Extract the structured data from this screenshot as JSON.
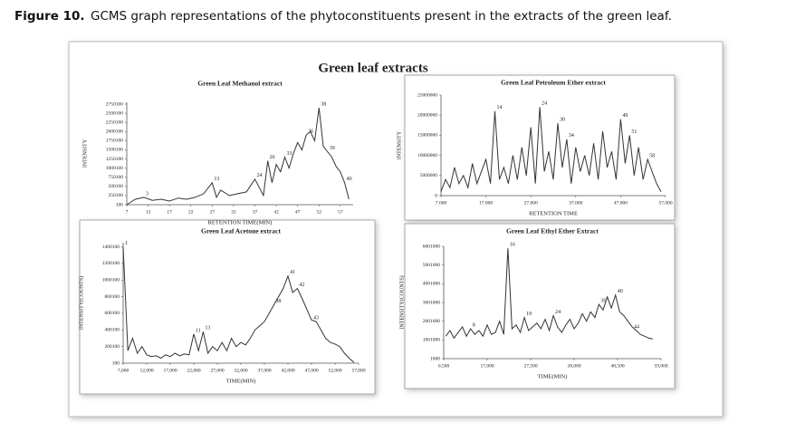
{
  "caption_label": "Figure 10.",
  "caption": "GCMS graph representations of the phytoconstituents present in the extracts of the green leaf.",
  "figure_title": "Green leaf extracts",
  "chart_data": [
    {
      "type": "line",
      "title": "Green Leaf Methanol extract",
      "xlabel": "RETENTION TIME(MIN)",
      "ylabel": "INTENSITY",
      "color": "#333333",
      "x": [
        7,
        9,
        11,
        13,
        15,
        17,
        19,
        21,
        23,
        25,
        27,
        28,
        29,
        31,
        33,
        35,
        37,
        39,
        40,
        41,
        42,
        43,
        44,
        45,
        46,
        47,
        48,
        49,
        50,
        51,
        52,
        53,
        54,
        55,
        56,
        57,
        58,
        59
      ],
      "values": [
        100,
        150000,
        200000,
        120000,
        150000,
        100000,
        180000,
        150000,
        200000,
        300000,
        600000,
        200000,
        400000,
        250000,
        300000,
        350000,
        700000,
        250000,
        1200000,
        600000,
        1100000,
        900000,
        1300000,
        1000000,
        1400000,
        1700000,
        1500000,
        1900000,
        2000000,
        1750000,
        2650000,
        1600000,
        1450000,
        1300000,
        1050000,
        900000,
        600000,
        150000
      ],
      "xlim": [
        7,
        60
      ],
      "ylim": [
        100,
        2800000
      ],
      "xticks": [
        7,
        12,
        17,
        22,
        27,
        32,
        37,
        42,
        47,
        52,
        57
      ],
      "yticks": [
        100,
        250100,
        500100,
        750100,
        1000100,
        1250100,
        1500100,
        1750100,
        2000100,
        2250100,
        2500100,
        2750100
      ],
      "annotations": [
        {
          "label": "3",
          "x": 11,
          "y": 200000
        },
        {
          "label": "13",
          "x": 27,
          "y": 600000
        },
        {
          "label": "24",
          "x": 37,
          "y": 700000
        },
        {
          "label": "26",
          "x": 40,
          "y": 1200000
        },
        {
          "label": "33",
          "x": 44,
          "y": 1300000
        },
        {
          "label": "36",
          "x": 49,
          "y": 1900000
        },
        {
          "label": "38",
          "x": 52,
          "y": 2650000
        },
        {
          "label": "39",
          "x": 54,
          "y": 1450000
        },
        {
          "label": "40",
          "x": 58,
          "y": 600000
        }
      ]
    },
    {
      "type": "line",
      "title": "Green Leaf Petroleum Ether extract",
      "xlabel": "RETENTION TIME",
      "ylabel": "INTENSITY",
      "color": "#333333",
      "x": [
        7000,
        8000,
        9000,
        10000,
        11000,
        12000,
        13000,
        14000,
        15000,
        16000,
        17000,
        18000,
        19000,
        20000,
        21000,
        22000,
        23000,
        24000,
        25000,
        26000,
        27000,
        28000,
        29000,
        30000,
        31000,
        32000,
        33000,
        34000,
        35000,
        36000,
        37000,
        38000,
        39000,
        40000,
        41000,
        42000,
        43000,
        44000,
        45000,
        46000,
        47000,
        48000,
        49000,
        50000,
        51000,
        52000,
        53000,
        54000,
        55000,
        56000
      ],
      "values": [
        1000000,
        4000000,
        2000000,
        7000000,
        3000000,
        5000000,
        2000000,
        8000000,
        3000000,
        6000000,
        9000000,
        3000000,
        21000000,
        4000000,
        7000000,
        3000000,
        10000000,
        4000000,
        12000000,
        5000000,
        17000000,
        3000000,
        22000000,
        6000000,
        11000000,
        4000000,
        18000000,
        7000000,
        14000000,
        3000000,
        12000000,
        6000000,
        10000000,
        5000000,
        13000000,
        4000000,
        16000000,
        7000000,
        11000000,
        4000000,
        19000000,
        8000000,
        15000000,
        5000000,
        12000000,
        4000000,
        9000000,
        6000000,
        3000000,
        1000000
      ],
      "xlim": [
        7000,
        57000
      ],
      "ylim": [
        0,
        25000000
      ],
      "xticks": [
        {
          "value": 7000,
          "label": "7.000"
        },
        {
          "value": 17000,
          "label": "17.000"
        },
        {
          "value": 27000,
          "label": "27.000"
        },
        {
          "value": 37000,
          "label": "37.000"
        },
        {
          "value": 47000,
          "label": "47.000"
        },
        {
          "value": 57000,
          "label": "57.000"
        }
      ],
      "yticks": [
        0,
        5000000,
        10000000,
        15000000,
        20000000,
        25000000
      ],
      "annotations": [
        {
          "label": "14",
          "x": 19000,
          "y": 21000000
        },
        {
          "label": "24",
          "x": 29000,
          "y": 22000000
        },
        {
          "label": "30",
          "x": 33000,
          "y": 18000000
        },
        {
          "label": "34",
          "x": 35000,
          "y": 14000000
        },
        {
          "label": "49",
          "x": 47000,
          "y": 19000000
        },
        {
          "label": "51",
          "x": 49000,
          "y": 15000000
        },
        {
          "label": "58",
          "x": 53000,
          "y": 9000000
        }
      ]
    },
    {
      "type": "line",
      "title": "Green Leaf Acetone extract",
      "xlabel": "TIME(MIN)",
      "ylabel": "INTENSITY(COUNTS)",
      "color": "#333333",
      "x": [
        7000,
        8000,
        9000,
        10000,
        11000,
        12000,
        13000,
        14000,
        15000,
        16000,
        17000,
        18000,
        19000,
        20000,
        21000,
        22000,
        23000,
        24000,
        25000,
        26000,
        27000,
        28000,
        29000,
        30000,
        31000,
        32000,
        33000,
        34000,
        35000,
        36000,
        37000,
        38000,
        39000,
        40000,
        41000,
        42000,
        43000,
        44000,
        45000,
        46000,
        47000,
        48000,
        49000,
        50000,
        51000,
        52000,
        53000,
        54000,
        55000,
        56000
      ],
      "values": [
        1400000,
        150000,
        300000,
        120000,
        200000,
        100000,
        80000,
        90000,
        60000,
        100000,
        80000,
        120000,
        90000,
        110000,
        100000,
        350000,
        150000,
        380000,
        120000,
        200000,
        150000,
        250000,
        150000,
        300000,
        200000,
        250000,
        220000,
        300000,
        400000,
        450000,
        500000,
        600000,
        700000,
        800000,
        900000,
        1050000,
        850000,
        900000,
        780000,
        650000,
        520000,
        500000,
        400000,
        300000,
        250000,
        230000,
        200000,
        120000,
        60000,
        10000
      ],
      "xlim": [
        7000,
        57000
      ],
      "ylim": [
        100,
        1450000
      ],
      "xticks": [
        {
          "value": 7000,
          "label": "7,000"
        },
        {
          "value": 12000,
          "label": "12,000"
        },
        {
          "value": 17000,
          "label": "17,000"
        },
        {
          "value": 22000,
          "label": "22,000"
        },
        {
          "value": 27000,
          "label": "27,000"
        },
        {
          "value": 32000,
          "label": "32,000"
        },
        {
          "value": 37000,
          "label": "37,000"
        },
        {
          "value": 42000,
          "label": "42,000"
        },
        {
          "value": 47000,
          "label": "47,000"
        },
        {
          "value": 52000,
          "label": "52,000"
        },
        {
          "value": 57000,
          "label": "57,000"
        }
      ],
      "yticks": [
        100,
        200100,
        400100,
        600100,
        800100,
        1000100,
        1200100,
        1400100
      ],
      "annotations": [
        {
          "label": "1",
          "x": 7000,
          "y": 1400000
        },
        {
          "label": "11",
          "x": 22000,
          "y": 350000
        },
        {
          "label": "13",
          "x": 24000,
          "y": 380000
        },
        {
          "label": "38",
          "x": 39000,
          "y": 700000
        },
        {
          "label": "41",
          "x": 42000,
          "y": 1050000
        },
        {
          "label": "42",
          "x": 44000,
          "y": 900000
        },
        {
          "label": "43",
          "x": 47000,
          "y": 500000
        }
      ]
    },
    {
      "type": "line",
      "title": "Green Leaf Ethyl Ether Extract",
      "xlabel": "TIME(MIN)",
      "ylabel": "INTENSITY(COUNTS)",
      "color": "#333333",
      "x": [
        7000,
        8000,
        9000,
        10000,
        11000,
        12000,
        13000,
        14000,
        15000,
        16000,
        17000,
        18000,
        19000,
        20000,
        21000,
        22000,
        23000,
        24000,
        25000,
        26000,
        27000,
        28000,
        29000,
        30000,
        31000,
        32000,
        33000,
        34000,
        35000,
        36000,
        37000,
        38000,
        39000,
        40000,
        41000,
        42000,
        43000,
        44000,
        45000,
        46000,
        47000,
        48000,
        49000,
        50000,
        51000,
        52000,
        53000,
        54000,
        55000,
        56000,
        57000
      ],
      "values": [
        1200000,
        1500000,
        1100000,
        1400000,
        1700000,
        1200000,
        1600000,
        1300000,
        1500000,
        1200000,
        1800000,
        1300000,
        1400000,
        2000000,
        1300000,
        5900000,
        1600000,
        1800000,
        1400000,
        2200000,
        1500000,
        1700000,
        1900000,
        1600000,
        2100000,
        1500000,
        2300000,
        1700000,
        1400000,
        1800000,
        2100000,
        1600000,
        1900000,
        2400000,
        2000000,
        2500000,
        2200000,
        2900000,
        2600000,
        3300000,
        2700000,
        3400000,
        2500000,
        2300000,
        2000000,
        1700000,
        1500000,
        1300000,
        1200000,
        1100000,
        1050000
      ],
      "xlim": [
        6500,
        59000
      ],
      "ylim": [
        1000,
        6001000
      ],
      "xticks": [
        {
          "value": 6500,
          "label": "6,500"
        },
        {
          "value": 17000,
          "label": "17,000"
        },
        {
          "value": 27500,
          "label": "27,500"
        },
        {
          "value": 38000,
          "label": "38,000"
        },
        {
          "value": 48500,
          "label": "48,500"
        },
        {
          "value": 59000,
          "label": "59,000"
        }
      ],
      "yticks": [
        1000,
        1001000,
        2001000,
        3001000,
        4001000,
        5001000,
        6001000
      ],
      "annotations": [
        {
          "label": "8",
          "x": 13000,
          "y": 1600000
        },
        {
          "label": "16",
          "x": 22000,
          "y": 5900000
        },
        {
          "label": "19",
          "x": 26000,
          "y": 2200000
        },
        {
          "label": "24",
          "x": 33000,
          "y": 2300000
        },
        {
          "label": "36",
          "x": 44000,
          "y": 2900000
        },
        {
          "label": "40",
          "x": 48000,
          "y": 3400000
        },
        {
          "label": "44",
          "x": 52000,
          "y": 1500000
        }
      ]
    }
  ]
}
